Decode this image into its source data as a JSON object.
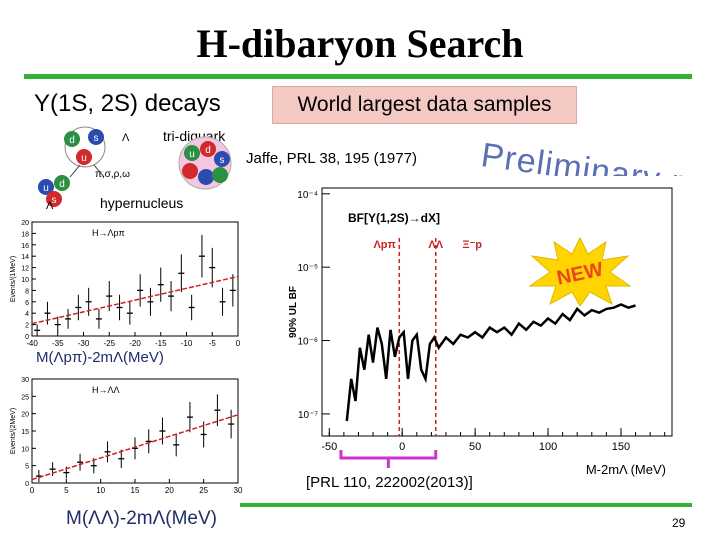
{
  "slide": {
    "title": "H-dibaryon Search",
    "decays_symbol": "Υ",
    "decays_text": "(1S, 2S) decays",
    "world_box": "World largest data samples",
    "tri_diquark": "tri-diquark",
    "jaffe_ref": "Jaffe, PRL 38, 195 (1977)",
    "hypernucleus": "hypernucleus",
    "preliminary": "Preliminary r",
    "new_label": "NEW",
    "prl_ref": "[PRL 110, 222002(2013)]",
    "page_number": "29"
  },
  "quark_diagram": {
    "quarks": [
      "d",
      "s",
      "u",
      "u",
      "d",
      "s",
      "u",
      "d",
      "s"
    ],
    "lambda1": "Λ",
    "lambda2": "Λ",
    "mesons": "π,σ,ρ,ω"
  },
  "colors": {
    "accent_green": "#33b233",
    "box_pink": "#f4c9c4",
    "threshold_red": "#cc2222",
    "bracket_magenta": "#cc33cc",
    "preliminary_blue": "#5a6fb5",
    "new_red": "#e8461e",
    "new_yellow": "#ffd400"
  },
  "chart_data": [
    {
      "type": "line",
      "title": "BF[Υ(1,2S)→dX]",
      "ylabel": "90% UL BF",
      "xlabel": "M-2mΛ (MeV)",
      "log_y": true,
      "xlim": [
        -55,
        185
      ],
      "ylim": [
        5e-08,
        0.00012
      ],
      "x_ticks": [
        "-50",
        "0",
        "50",
        "100",
        "150"
      ],
      "y_ticks": [
        "10⁻⁴",
        "10⁻⁵",
        "10⁻⁶",
        "10⁻⁷"
      ],
      "thresholds": [
        {
          "label": "Λpπ",
          "x": -2
        },
        {
          "label": "ΛΛ",
          "x": 23
        }
      ],
      "threshold_labels": [
        "Λpπ",
        "ΛΛ",
        "Ξ⁻p"
      ],
      "series": [
        {
          "x": [
            -38,
            -35,
            -32,
            -29,
            -26,
            -23,
            -20,
            -17,
            -14,
            -11,
            -8,
            -5,
            -2,
            1,
            4,
            7,
            10,
            13,
            16,
            19,
            22,
            25,
            30,
            35,
            40,
            45,
            50,
            55,
            60,
            65,
            70,
            75,
            80,
            85,
            90,
            95,
            100,
            105,
            110,
            115,
            120,
            125,
            130,
            135,
            140,
            145,
            150,
            155,
            160
          ],
          "y": [
            8e-08,
            3e-07,
            1.5e-07,
            8e-07,
            4e-07,
            1.2e-06,
            5e-07,
            1.5e-06,
            9e-07,
            3e-07,
            1.4e-06,
            6e-07,
            1.1e-06,
            1.3e-06,
            3e-07,
            1e-06,
            1.2e-06,
            4e-07,
            3e-07,
            9e-07,
            1.1e-06,
            8e-07,
            1.1e-06,
            9e-07,
            1.2e-06,
            1.1e-06,
            1.3e-06,
            1.1e-06,
            1.5e-06,
            1.3e-06,
            1.5e-06,
            1.2e-06,
            1.7e-06,
            1.4e-06,
            1.8e-06,
            1.6e-06,
            2e-06,
            1.7e-06,
            2.3e-06,
            1.9e-06,
            2.7e-06,
            2.2e-06,
            2.6e-06,
            2.4e-06,
            2.7e-06,
            2.8e-06,
            3.1e-06,
            2.8e-06,
            3e-06
          ]
        }
      ]
    },
    {
      "type": "scatter",
      "title": "H→Λpπ",
      "xlabel": "M(Λpπ)-2mΛ(MeV)",
      "ylabel": "Events/(1MeV)",
      "xlim": [
        -40,
        0
      ],
      "ylim": [
        0,
        20
      ],
      "x_ticks": [
        "-40",
        "-35",
        "-30",
        "-25",
        "-20",
        "-15",
        "-10",
        "-5",
        "0"
      ],
      "y_ticks": [
        "0",
        "2",
        "4",
        "6",
        "8",
        "10",
        "12",
        "14",
        "16",
        "18",
        "20"
      ],
      "x": [
        -39,
        -37,
        -35,
        -33,
        -31,
        -29,
        -27,
        -25,
        -23,
        -21,
        -19,
        -17,
        -15,
        -13,
        -11,
        -9,
        -7,
        -5,
        -3,
        -1
      ],
      "y": [
        1,
        4,
        2,
        3,
        5,
        6,
        3,
        7,
        5,
        4,
        8,
        6,
        9,
        7,
        11,
        5,
        14,
        12,
        6,
        8
      ]
    },
    {
      "type": "scatter",
      "title": "H→ΛΛ",
      "xlabel": "M(ΛΛ)-2mΛ(MeV)",
      "ylabel": "Events/(2MeV)",
      "xlim": [
        0,
        30
      ],
      "ylim": [
        0,
        30
      ],
      "x_ticks": [
        "0",
        "5",
        "10",
        "15",
        "20",
        "25",
        "30"
      ],
      "y_ticks": [
        "0",
        "5",
        "10",
        "15",
        "20",
        "25",
        "30"
      ],
      "x": [
        1,
        3,
        5,
        7,
        9,
        11,
        13,
        15,
        17,
        19,
        21,
        23,
        25,
        27,
        29
      ],
      "y": [
        2,
        4,
        3,
        6,
        5,
        9,
        7,
        10,
        12,
        15,
        11,
        19,
        14,
        21,
        17
      ]
    }
  ]
}
